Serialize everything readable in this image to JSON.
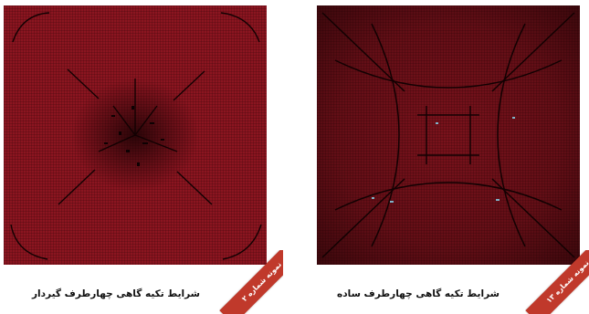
{
  "panels": {
    "left": {
      "caption": "شرایط تکیه گاهی چهارطرف گیردار",
      "badge": "نمونه شماره ۲",
      "fill_color": "#8b1520",
      "grid_color": "#3a0508"
    },
    "right": {
      "caption": "شرایط تکیه گاهی چهارطرف ساده",
      "badge": "نمونه شماره ۱۳",
      "fill_color": "#8b1520",
      "grid_color": "#3a0508"
    }
  },
  "badge_color": "#c0392b"
}
